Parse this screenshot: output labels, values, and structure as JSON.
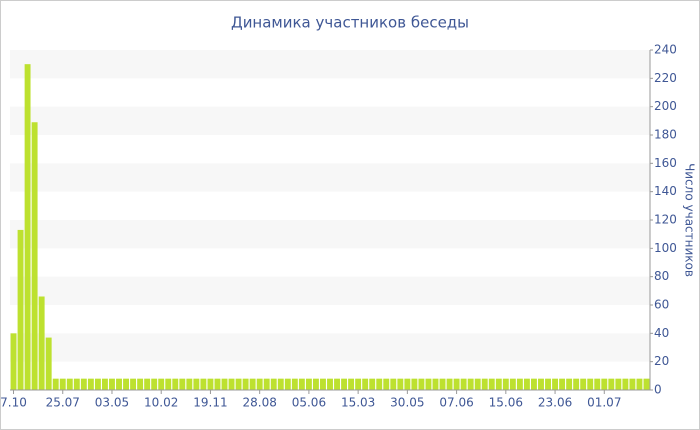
{
  "chart_data": {
    "type": "bar",
    "title": "Динамика участников беседы",
    "y_label": "Число участников",
    "categories": [
      "7.10",
      null,
      null,
      null,
      null,
      null,
      null,
      "25.07",
      null,
      null,
      null,
      null,
      null,
      null,
      "03.05",
      null,
      null,
      null,
      null,
      null,
      null,
      "10.02",
      null,
      null,
      null,
      null,
      null,
      null,
      "19.11",
      null,
      null,
      null,
      null,
      null,
      null,
      "28.08",
      null,
      null,
      null,
      null,
      null,
      null,
      "05.06",
      null,
      null,
      null,
      null,
      null,
      null,
      "15.03",
      null,
      null,
      null,
      null,
      null,
      null,
      "30.05",
      null,
      null,
      null,
      null,
      null,
      null,
      "07.06",
      null,
      null,
      null,
      null,
      null,
      null,
      "15.06",
      null,
      null,
      null,
      null,
      null,
      null,
      "23.06",
      null,
      null,
      null,
      null,
      null,
      null,
      "01.07",
      null,
      null,
      null,
      null,
      null,
      null
    ],
    "values": [
      40,
      113,
      230,
      189,
      66,
      37,
      8,
      8,
      8,
      8,
      8,
      8,
      8,
      8,
      8,
      8,
      8,
      8,
      8,
      8,
      8,
      8,
      8,
      8,
      8,
      8,
      8,
      8,
      8,
      8,
      8,
      8,
      8,
      8,
      8,
      8,
      8,
      8,
      8,
      8,
      8,
      8,
      8,
      8,
      8,
      8,
      8,
      8,
      8,
      8,
      8,
      8,
      8,
      8,
      8,
      8,
      8,
      8,
      8,
      8,
      8,
      8,
      8,
      8,
      8,
      8,
      8,
      8,
      8,
      8,
      8,
      8,
      8,
      8,
      8,
      8,
      8,
      8,
      8,
      8,
      8,
      8,
      8,
      8,
      8,
      8,
      8,
      8,
      8,
      8,
      8
    ],
    "color": "#bde12f",
    "ylim": [
      0,
      240
    ],
    "yticks": [
      0,
      20,
      40,
      60,
      80,
      100,
      120,
      140,
      160,
      180,
      200,
      220,
      240
    ],
    "grid": "bands",
    "y_axis_side": "right"
  }
}
